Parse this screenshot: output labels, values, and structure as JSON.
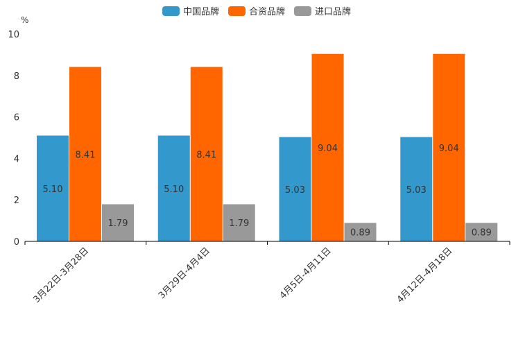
{
  "chart_data": {
    "type": "bar",
    "unit": "%",
    "categories": [
      "3月22日-3月28日",
      "3月29日-4月4日",
      "4月5日-4月11日",
      "4月12日-4月18日"
    ],
    "series": [
      {
        "name": "中国品牌",
        "color": "#3399CC",
        "values": [
          5.1,
          5.1,
          5.03,
          5.03
        ],
        "labels": [
          "5.10",
          "5.10",
          "5.03",
          "5.03"
        ]
      },
      {
        "name": "合资品牌",
        "color": "#FF6600",
        "values": [
          8.41,
          8.41,
          9.04,
          9.04
        ],
        "labels": [
          "8.41",
          "8.41",
          "9.04",
          "9.04"
        ]
      },
      {
        "name": "进口品牌",
        "color": "#999999",
        "values": [
          1.79,
          1.79,
          0.89,
          0.89
        ],
        "labels": [
          "1.79",
          "1.79",
          "0.89",
          "0.89"
        ]
      }
    ],
    "ylim": [
      0,
      10
    ],
    "yticks": [
      "0",
      "2",
      "4",
      "6",
      "8",
      "10"
    ],
    "legend_position": "top-center",
    "grid": false
  }
}
